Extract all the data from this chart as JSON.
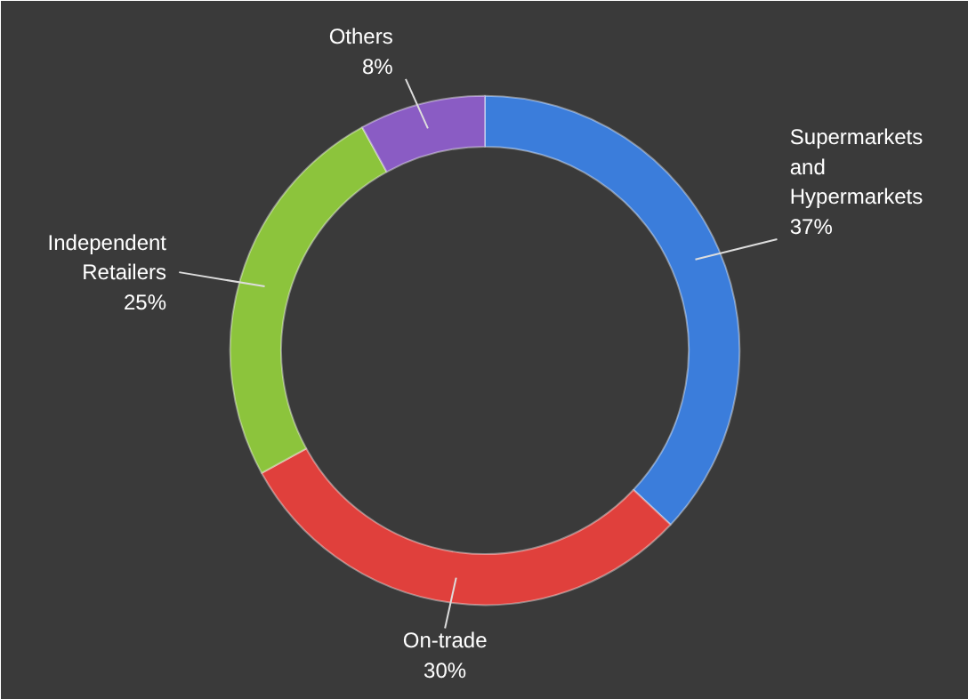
{
  "chart_data": {
    "type": "donut",
    "categories": [
      "Supermarkets and Hypermarkets",
      "On-trade",
      "Independent Retailers",
      "Others"
    ],
    "values": [
      37,
      30,
      25,
      8
    ],
    "colors": [
      "#3b7ddb",
      "#e0403c",
      "#8cc43c",
      "#8a5cc4"
    ],
    "value_labels": [
      "37%",
      "30%",
      "25%",
      "8%"
    ]
  }
}
